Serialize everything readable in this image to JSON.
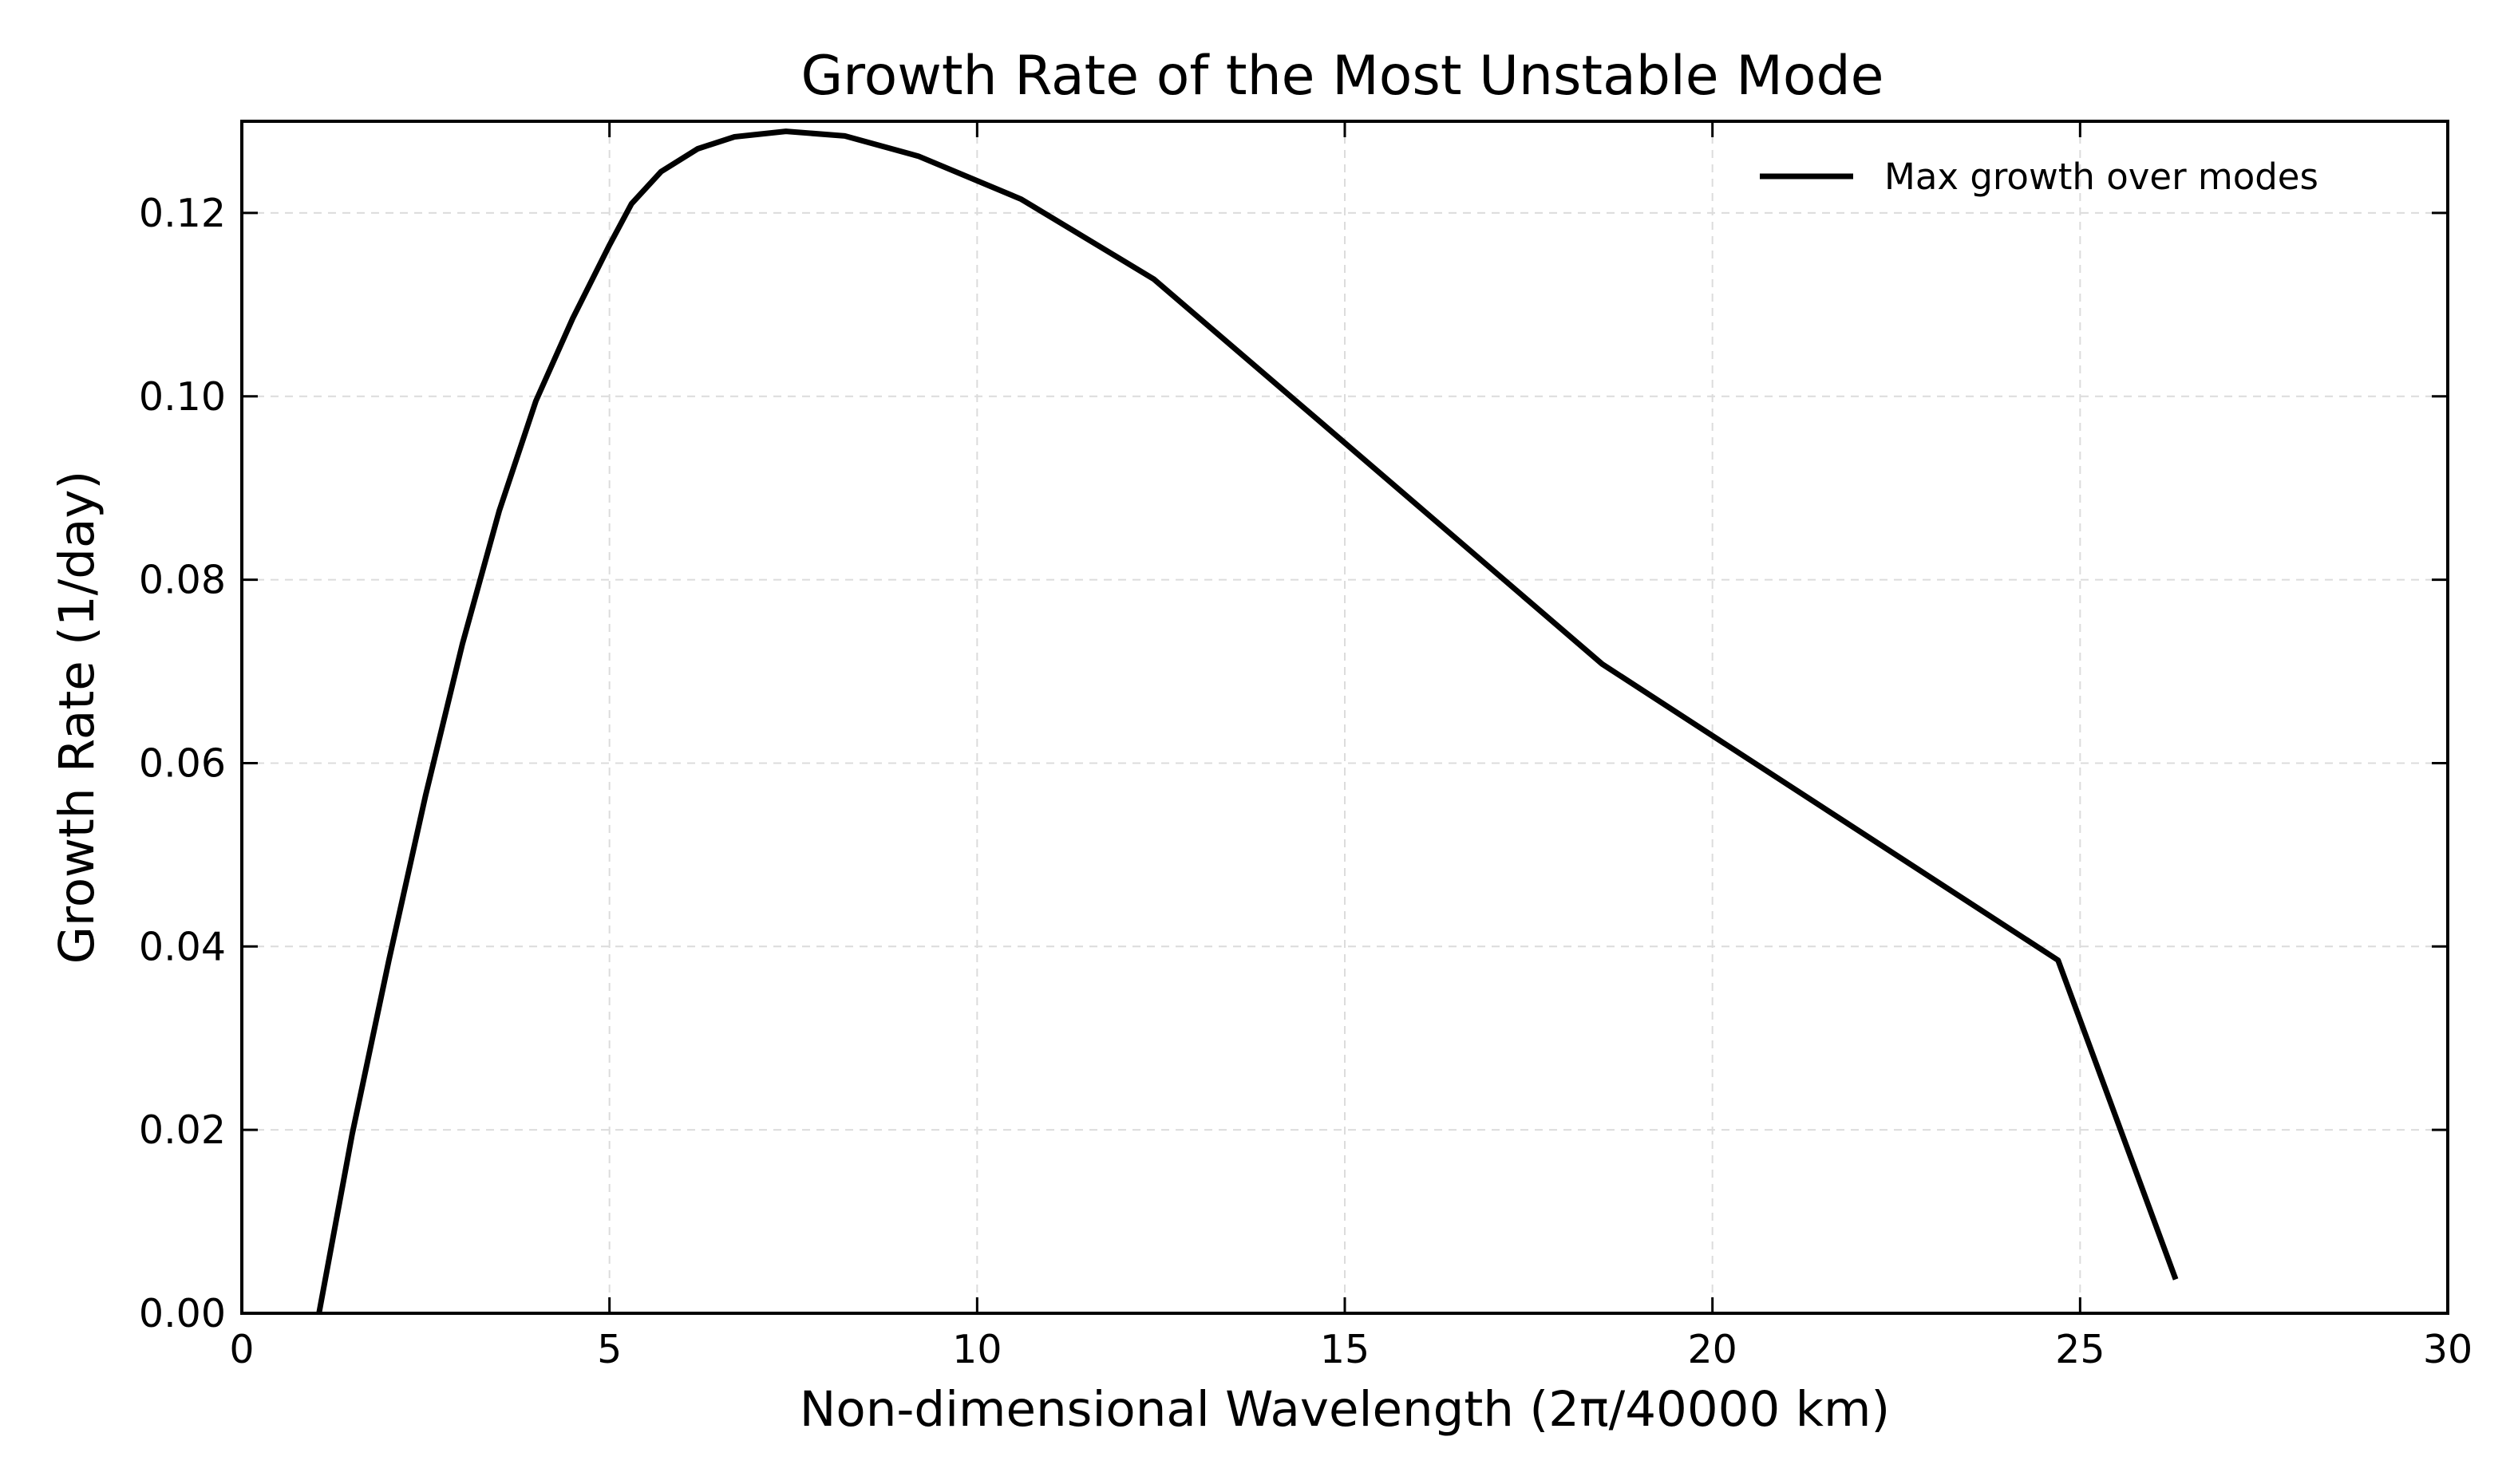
{
  "chart_data": {
    "type": "line",
    "title": "Growth Rate of the Most Unstable Mode",
    "xlabel": "Non-dimensional Wavelength (2π/40000 km)",
    "ylabel": "Growth Rate (1/day)",
    "xlim": [
      0,
      30
    ],
    "ylim": [
      0,
      0.13
    ],
    "xticks": [
      0,
      5,
      10,
      15,
      20,
      25,
      30
    ],
    "xtick_labels": [
      "0",
      "5",
      "10",
      "15",
      "20",
      "25",
      "30"
    ],
    "yticks": [
      0,
      0.02,
      0.04,
      0.06,
      0.08,
      0.1,
      0.12
    ],
    "ytick_labels": [
      "0.00",
      "0.02",
      "0.04",
      "0.06",
      "0.08",
      "0.10",
      "0.12"
    ],
    "grid": true,
    "legend_position": "top-right",
    "series": [
      {
        "name": "Max growth over modes",
        "color": "#000000",
        "x": [
          1.05,
          1.5,
          2.0,
          2.5,
          3.0,
          3.5,
          4.0,
          4.5,
          5.0,
          5.3,
          5.7,
          6.2,
          6.7,
          7.4,
          8.2,
          9.2,
          10.6,
          12.4,
          14.8,
          18.5,
          24.7,
          26.3
        ],
        "y": [
          0.0,
          0.0195,
          0.0385,
          0.0565,
          0.073,
          0.0875,
          0.0995,
          0.1085,
          0.1165,
          0.121,
          0.1245,
          0.127,
          0.1283,
          0.1289,
          0.1284,
          0.1262,
          0.1215,
          0.1128,
          0.0963,
          0.0708,
          0.0385,
          0.0037
        ]
      }
    ]
  }
}
